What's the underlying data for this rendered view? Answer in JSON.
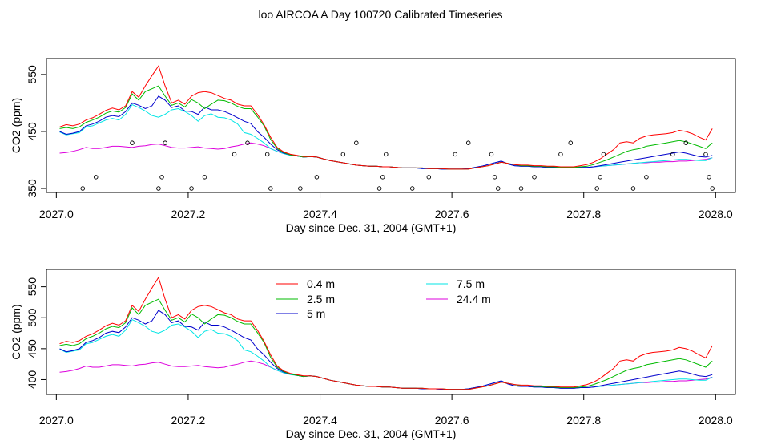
{
  "page": {
    "title": "loo AIRCOA A  Day 100720  Calibrated Timeseries"
  },
  "colors": {
    "0.4 m": "#ff0000",
    "2.5 m": "#00bb00",
    "5 m": "#0000cc",
    "7.5 m": "#00e5e5",
    "24.4 m": "#dd00dd",
    "axis": "#000000"
  },
  "chart_data": [
    {
      "type": "line",
      "xlabel": "Day since Dec. 31, 2004 (GMT+1)",
      "ylabel": "CO2 (ppm)",
      "xlim": [
        2026.985,
        2028.03
      ],
      "ylim": [
        343,
        578
      ],
      "xticks": [
        2027.0,
        2027.2,
        2027.4,
        2027.6,
        2027.8,
        2028.0
      ],
      "xtick_labels": [
        "2027.0",
        "2027.2",
        "2027.4",
        "2027.6",
        "2027.8",
        "2028.0"
      ],
      "yticks": [
        350,
        450,
        550
      ],
      "ytick_labels": [
        "350",
        "450",
        "550"
      ],
      "legend": null,
      "x": [
        2027.005,
        2027.015,
        2027.025,
        2027.035,
        2027.045,
        2027.055,
        2027.065,
        2027.075,
        2027.085,
        2027.095,
        2027.105,
        2027.115,
        2027.125,
        2027.135,
        2027.145,
        2027.155,
        2027.165,
        2027.175,
        2027.185,
        2027.195,
        2027.205,
        2027.215,
        2027.225,
        2027.235,
        2027.245,
        2027.255,
        2027.265,
        2027.275,
        2027.285,
        2027.295,
        2027.305,
        2027.315,
        2027.325,
        2027.335,
        2027.345,
        2027.355,
        2027.365,
        2027.375,
        2027.385,
        2027.395,
        2027.405,
        2027.415,
        2027.425,
        2027.435,
        2027.445,
        2027.455,
        2027.465,
        2027.475,
        2027.485,
        2027.495,
        2027.505,
        2027.515,
        2027.525,
        2027.535,
        2027.545,
        2027.555,
        2027.565,
        2027.575,
        2027.585,
        2027.595,
        2027.605,
        2027.615,
        2027.625,
        2027.635,
        2027.645,
        2027.655,
        2027.665,
        2027.675,
        2027.685,
        2027.695,
        2027.705,
        2027.715,
        2027.725,
        2027.735,
        2027.745,
        2027.755,
        2027.765,
        2027.775,
        2027.785,
        2027.795,
        2027.805,
        2027.815,
        2027.825,
        2027.835,
        2027.845,
        2027.855,
        2027.865,
        2027.875,
        2027.885,
        2027.895,
        2027.905,
        2027.915,
        2027.925,
        2027.935,
        2027.945,
        2027.955,
        2027.965,
        2027.975,
        2027.985,
        2027.995
      ],
      "series": [
        {
          "name": "0.4 m",
          "values": [
            458,
            462,
            460,
            463,
            470,
            474,
            480,
            487,
            491,
            488,
            495,
            520,
            510,
            530,
            548,
            565,
            530,
            500,
            505,
            498,
            512,
            518,
            520,
            518,
            513,
            508,
            505,
            498,
            495,
            495,
            480,
            462,
            440,
            422,
            414,
            410,
            408,
            406,
            406,
            405,
            402,
            399,
            397,
            395,
            393,
            391,
            390,
            389,
            389,
            388,
            388,
            387,
            386,
            386,
            386,
            386,
            385,
            385,
            385,
            384,
            384,
            384,
            384,
            386,
            388,
            390,
            393,
            396,
            394,
            392,
            391,
            391,
            390,
            390,
            389,
            389,
            388,
            388,
            388,
            390,
            392,
            396,
            402,
            410,
            418,
            430,
            432,
            430,
            438,
            442,
            444,
            445,
            446,
            448,
            452,
            450,
            446,
            440,
            435,
            455
          ]
        },
        {
          "name": "2.5 m",
          "values": [
            455,
            457,
            455,
            458,
            466,
            470,
            475,
            482,
            486,
            484,
            492,
            516,
            505,
            520,
            525,
            530,
            512,
            496,
            500,
            493,
            506,
            500,
            490,
            498,
            505,
            504,
            500,
            494,
            490,
            490,
            476,
            460,
            436,
            420,
            413,
            409,
            407,
            405,
            406,
            405,
            402,
            399,
            397,
            395,
            393,
            391,
            390,
            389,
            389,
            388,
            388,
            387,
            386,
            386,
            386,
            386,
            385,
            385,
            385,
            384,
            384,
            384,
            384,
            386,
            388,
            390,
            393,
            396,
            394,
            392,
            390,
            390,
            389,
            389,
            388,
            388,
            387,
            387,
            387,
            388,
            389,
            392,
            396,
            400,
            405,
            410,
            415,
            418,
            420,
            424,
            426,
            428,
            430,
            432,
            434,
            432,
            428,
            424,
            420,
            430
          ]
        },
        {
          "name": "5 m",
          "values": [
            450,
            445,
            447,
            450,
            460,
            463,
            468,
            475,
            478,
            476,
            485,
            500,
            496,
            490,
            495,
            512,
            505,
            492,
            495,
            486,
            485,
            480,
            493,
            488,
            488,
            485,
            480,
            474,
            468,
            464,
            450,
            440,
            428,
            418,
            412,
            409,
            407,
            405,
            406,
            405,
            402,
            399,
            397,
            395,
            393,
            391,
            390,
            389,
            389,
            388,
            388,
            387,
            386,
            386,
            386,
            385,
            385,
            385,
            384,
            384,
            384,
            384,
            385,
            387,
            389,
            392,
            395,
            398,
            393,
            390,
            389,
            389,
            388,
            388,
            387,
            387,
            386,
            386,
            386,
            387,
            387,
            388,
            390,
            392,
            394,
            396,
            398,
            400,
            402,
            404,
            406,
            408,
            410,
            412,
            414,
            412,
            409,
            406,
            405,
            408
          ]
        },
        {
          "name": "7.5 m",
          "values": [
            449,
            444,
            446,
            448,
            458,
            460,
            465,
            470,
            473,
            470,
            480,
            497,
            492,
            486,
            478,
            475,
            480,
            488,
            490,
            485,
            478,
            468,
            478,
            481,
            475,
            474,
            470,
            463,
            448,
            445,
            438,
            430,
            420,
            415,
            411,
            408,
            407,
            405,
            406,
            405,
            402,
            399,
            397,
            395,
            393,
            391,
            390,
            389,
            389,
            388,
            388,
            387,
            386,
            386,
            386,
            385,
            385,
            385,
            384,
            384,
            384,
            384,
            385,
            387,
            389,
            392,
            395,
            398,
            393,
            390,
            389,
            389,
            388,
            388,
            387,
            387,
            386,
            386,
            386,
            387,
            387,
            388,
            389,
            390,
            391,
            392,
            393,
            394,
            395,
            396,
            397,
            398,
            399,
            400,
            401,
            401,
            400,
            399,
            399,
            404
          ]
        },
        {
          "name": "24.4 m",
          "values": [
            412,
            413,
            415,
            418,
            422,
            420,
            420,
            422,
            424,
            424,
            423,
            422,
            424,
            425,
            427,
            428,
            425,
            422,
            421,
            421,
            422,
            423,
            421,
            420,
            419,
            420,
            423,
            425,
            428,
            430,
            428,
            425,
            420,
            415,
            411,
            409,
            407,
            405,
            406,
            405,
            402,
            399,
            397,
            395,
            393,
            391,
            390,
            389,
            389,
            388,
            388,
            387,
            386,
            386,
            386,
            385,
            385,
            385,
            384,
            384,
            384,
            384,
            385,
            387,
            389,
            392,
            395,
            398,
            393,
            390,
            389,
            389,
            388,
            388,
            387,
            387,
            386,
            386,
            386,
            387,
            387,
            388,
            389,
            390,
            391,
            392,
            393,
            394,
            395,
            395,
            396,
            396,
            397,
            397,
            398,
            398,
            399,
            400,
            401,
            404
          ]
        }
      ],
      "flags": {
        "x": [
          2027.04,
          2027.06,
          2027.115,
          2027.155,
          2027.16,
          2027.165,
          2027.205,
          2027.225,
          2027.27,
          2027.29,
          2027.32,
          2027.325,
          2027.37,
          2027.395,
          2027.435,
          2027.455,
          2027.49,
          2027.495,
          2027.5,
          2027.54,
          2027.565,
          2027.605,
          2027.625,
          2027.66,
          2027.665,
          2027.67,
          2027.705,
          2027.725,
          2027.765,
          2027.78,
          2027.82,
          2027.825,
          2027.83,
          2027.875,
          2027.895,
          2027.935,
          2027.955,
          2027.985,
          2027.99,
          2027.995
        ],
        "y": [
          350,
          370,
          430,
          350,
          370,
          430,
          350,
          370,
          410,
          430,
          410,
          350,
          350,
          370,
          410,
          430,
          350,
          370,
          410,
          350,
          370,
          410,
          430,
          410,
          370,
          350,
          350,
          370,
          410,
          430,
          350,
          370,
          410,
          350,
          370,
          410,
          430,
          410,
          370,
          350
        ]
      }
    },
    {
      "type": "line",
      "xlabel": "Day since Dec. 31, 2004 (GMT+1)",
      "ylabel": "CO2 (ppm)",
      "xlim": [
        2026.985,
        2028.03
      ],
      "ylim": [
        376,
        578
      ],
      "xticks": [
        2027.0,
        2027.2,
        2027.4,
        2027.6,
        2027.8,
        2028.0
      ],
      "xtick_labels": [
        "2027.0",
        "2027.2",
        "2027.4",
        "2027.6",
        "2027.8",
        "2028.0"
      ],
      "yticks": [
        400,
        450,
        500,
        550
      ],
      "ytick_labels": [
        "400",
        "450",
        "500",
        "550"
      ],
      "legend": "top-left",
      "legend_entries": [
        "0.4 m",
        "2.5 m",
        "5 m",
        "7.5 m",
        "24.4 m"
      ],
      "same_series_as_panel": 1
    }
  ]
}
